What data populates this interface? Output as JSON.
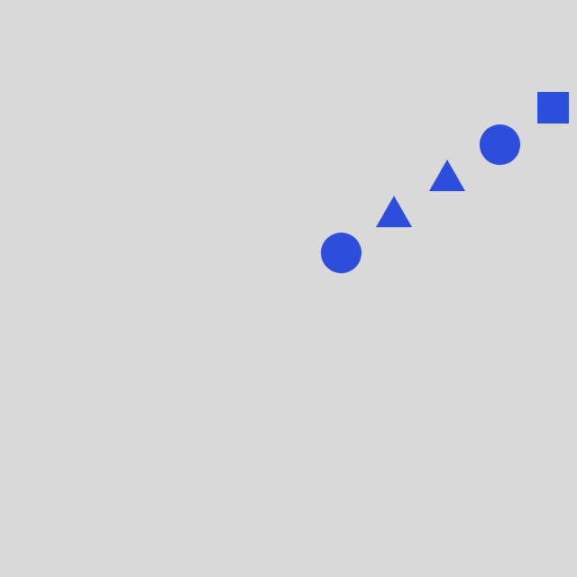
{
  "scene": {
    "background_color": "#d9d9d9",
    "shape_color": "#2b4fdc",
    "shapes": [
      {
        "kind": "circle"
      },
      {
        "kind": "triangle"
      },
      {
        "kind": "triangle"
      },
      {
        "kind": "circle"
      },
      {
        "kind": "square"
      }
    ]
  }
}
